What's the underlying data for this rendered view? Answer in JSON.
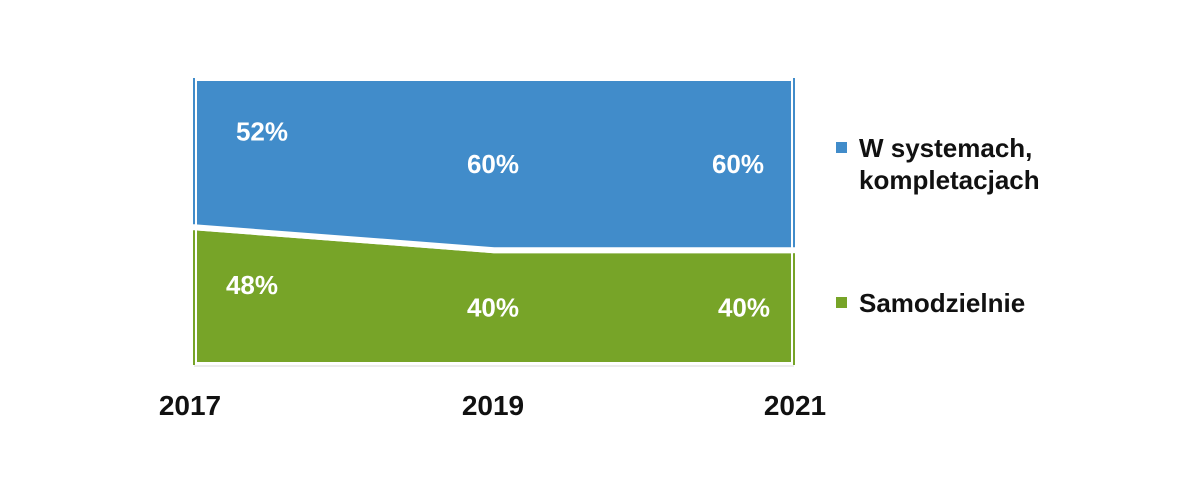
{
  "chart_data": {
    "type": "area",
    "stacking": "percent",
    "categories": [
      "2017",
      "2019",
      "2021"
    ],
    "series": [
      {
        "name": "Samodzielnie",
        "values": [
          48,
          40,
          40
        ],
        "labels": [
          "48%",
          "40%",
          "40%"
        ],
        "color": "#77A428"
      },
      {
        "name": "W systemach,\nkompletacjach",
        "values": [
          52,
          60,
          60
        ],
        "labels": [
          "52%",
          "60%",
          "60%"
        ],
        "color": "#418CCA"
      }
    ],
    "title": "",
    "xlabel": "",
    "ylabel": "",
    "ylim": [
      0,
      100
    ],
    "grid": false,
    "legend_position": "right"
  },
  "legend": {
    "items": [
      {
        "label": "W systemach,\nkompletacjach",
        "color": "#418CCA"
      },
      {
        "label": "Samodzielnie",
        "color": "#77A428"
      }
    ]
  }
}
